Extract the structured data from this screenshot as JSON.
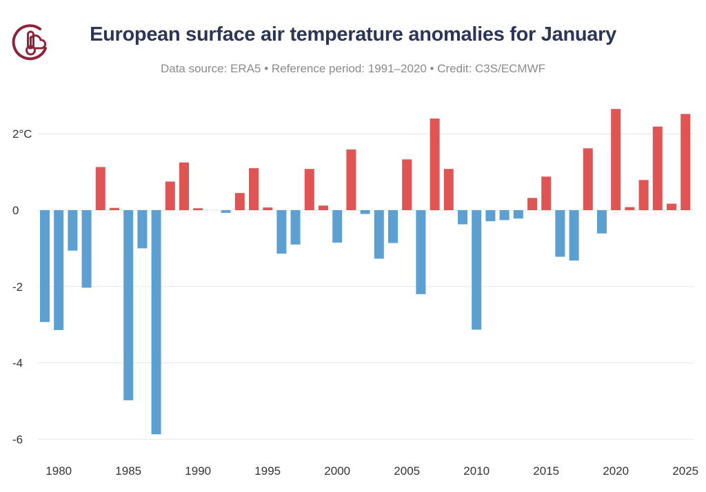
{
  "header": {
    "title": "European surface air temperature anomalies for January",
    "subtitle": "Data source: ERA5 • Reference period: 1991–2020 • Credit: C3S/ECMWF"
  },
  "colors": {
    "positive": "#e05454",
    "negative": "#5ba0d0",
    "gridline": "#e6e6e6",
    "title": "#2c3557",
    "logo": "#8e2438"
  },
  "logo": {
    "icon": "thermometer-cloud-icon"
  },
  "chart_data": {
    "type": "bar",
    "title": "European surface air temperature anomalies for January",
    "xlabel": "",
    "ylabel": "",
    "ylim": [
      -6.3,
      2.9
    ],
    "y_ticks": [
      {
        "value": 2,
        "label": "2°C"
      },
      {
        "value": 0,
        "label": "0"
      },
      {
        "value": -2,
        "label": "-2"
      },
      {
        "value": -4,
        "label": "-4"
      },
      {
        "value": -6,
        "label": "-6"
      }
    ],
    "x_ticks": [
      "1980",
      "1985",
      "1990",
      "1995",
      "2000",
      "2005",
      "2010",
      "2015",
      "2020",
      "2025"
    ],
    "grid": true,
    "legend": "none",
    "categories": [
      1979,
      1980,
      1981,
      1982,
      1983,
      1984,
      1985,
      1986,
      1987,
      1988,
      1989,
      1990,
      1991,
      1992,
      1993,
      1994,
      1995,
      1996,
      1997,
      1998,
      1999,
      2000,
      2001,
      2002,
      2003,
      2004,
      2005,
      2006,
      2007,
      2008,
      2009,
      2010,
      2011,
      2012,
      2013,
      2014,
      2015,
      2016,
      2017,
      2018,
      2019,
      2020,
      2021,
      2022,
      2023,
      2024,
      2025
    ],
    "values": [
      -2.93,
      -3.14,
      -1.06,
      -2.03,
      1.13,
      0.06,
      -4.98,
      -1.0,
      -5.87,
      0.75,
      1.25,
      0.05,
      0.0,
      -0.07,
      0.45,
      1.1,
      0.07,
      -1.14,
      -0.9,
      1.08,
      0.12,
      -0.85,
      1.59,
      -0.1,
      -1.27,
      -0.86,
      1.33,
      -2.2,
      2.4,
      1.08,
      -0.37,
      -3.13,
      -0.29,
      -0.26,
      -0.22,
      0.32,
      0.88,
      -1.22,
      -1.32,
      1.62,
      -0.61,
      2.65,
      0.08,
      0.79,
      2.19,
      0.17,
      2.52
    ]
  }
}
